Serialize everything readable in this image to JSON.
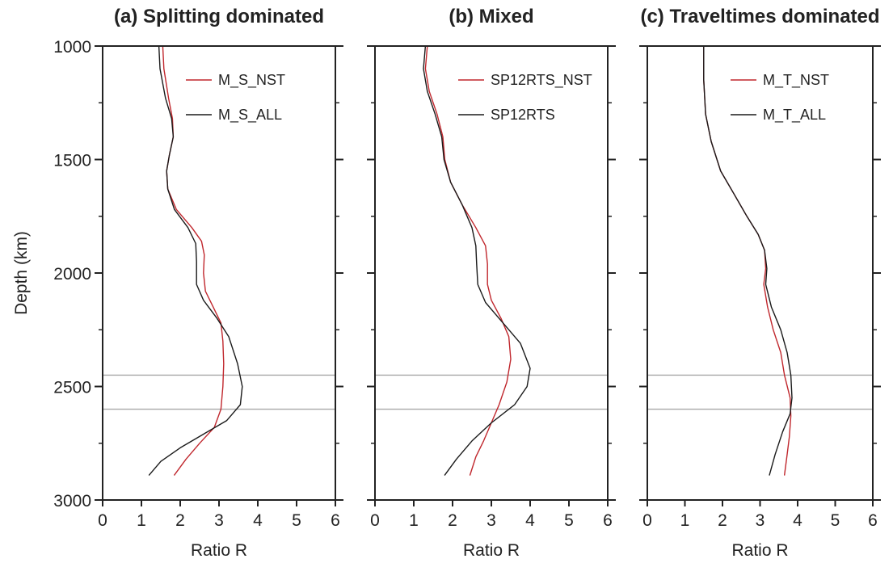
{
  "chart_data": [
    {
      "type": "line",
      "title": "(a) Splitting dominated",
      "xlabel": "Ratio R",
      "ylabel": "Depth (km)",
      "xlim": [
        0,
        6
      ],
      "ylim": [
        3000,
        1000
      ],
      "xticks": [
        0,
        1,
        2,
        3,
        4,
        5,
        6
      ],
      "yticks": [
        1000,
        1500,
        2000,
        2500,
        3000
      ],
      "y_minor": [
        1250,
        1750,
        2250,
        2750
      ],
      "ref_lines": [
        2450,
        2600
      ],
      "legend": "top-right",
      "series": [
        {
          "name": "M_S_NST",
          "color": "#c0272d",
          "points": [
            [
              1.55,
              1000
            ],
            [
              1.58,
              1100
            ],
            [
              1.7,
              1230
            ],
            [
              1.8,
              1320
            ],
            [
              1.82,
              1400
            ],
            [
              1.72,
              1480
            ],
            [
              1.65,
              1550
            ],
            [
              1.68,
              1630
            ],
            [
              1.9,
              1720
            ],
            [
              2.3,
              1800
            ],
            [
              2.55,
              1860
            ],
            [
              2.62,
              1920
            ],
            [
              2.6,
              2000
            ],
            [
              2.65,
              2080
            ],
            [
              2.85,
              2150
            ],
            [
              3.05,
              2220
            ],
            [
              3.1,
              2300
            ],
            [
              3.12,
              2400
            ],
            [
              3.1,
              2500
            ],
            [
              3.05,
              2600
            ],
            [
              2.88,
              2680
            ],
            [
              2.5,
              2750
            ],
            [
              2.15,
              2820
            ],
            [
              1.85,
              2890
            ]
          ]
        },
        {
          "name": "M_S_ALL",
          "color": "#1a1a1a",
          "points": [
            [
              1.45,
              1000
            ],
            [
              1.48,
              1100
            ],
            [
              1.62,
              1230
            ],
            [
              1.78,
              1320
            ],
            [
              1.82,
              1400
            ],
            [
              1.72,
              1480
            ],
            [
              1.65,
              1550
            ],
            [
              1.68,
              1630
            ],
            [
              1.85,
              1720
            ],
            [
              2.2,
              1800
            ],
            [
              2.4,
              1870
            ],
            [
              2.42,
              1950
            ],
            [
              2.42,
              2050
            ],
            [
              2.6,
              2120
            ],
            [
              2.95,
              2200
            ],
            [
              3.25,
              2280
            ],
            [
              3.48,
              2400
            ],
            [
              3.6,
              2500
            ],
            [
              3.55,
              2580
            ],
            [
              3.2,
              2650
            ],
            [
              2.6,
              2710
            ],
            [
              2.0,
              2770
            ],
            [
              1.5,
              2830
            ],
            [
              1.2,
              2890
            ]
          ]
        }
      ]
    },
    {
      "type": "line",
      "title": "(b) Mixed",
      "xlabel": "Ratio R",
      "ylabel": "",
      "xlim": [
        0,
        6
      ],
      "ylim": [
        3000,
        1000
      ],
      "xticks": [
        0,
        1,
        2,
        3,
        4,
        5,
        6
      ],
      "yticks": [
        1000,
        1500,
        2000,
        2500,
        3000
      ],
      "y_minor": [
        1250,
        1750,
        2250,
        2750
      ],
      "ref_lines": [
        2450,
        2600
      ],
      "legend": "top-right",
      "series": [
        {
          "name": "SP12RTS_NST",
          "color": "#c0272d",
          "points": [
            [
              1.35,
              1000
            ],
            [
              1.3,
              1100
            ],
            [
              1.4,
              1200
            ],
            [
              1.6,
              1300
            ],
            [
              1.75,
              1400
            ],
            [
              1.8,
              1500
            ],
            [
              1.95,
              1600
            ],
            [
              2.25,
              1700
            ],
            [
              2.6,
              1800
            ],
            [
              2.85,
              1880
            ],
            [
              2.9,
              1960
            ],
            [
              2.9,
              2050
            ],
            [
              3.0,
              2120
            ],
            [
              3.25,
              2200
            ],
            [
              3.45,
              2280
            ],
            [
              3.5,
              2380
            ],
            [
              3.4,
              2480
            ],
            [
              3.2,
              2580
            ],
            [
              3.0,
              2660
            ],
            [
              2.8,
              2740
            ],
            [
              2.6,
              2810
            ],
            [
              2.45,
              2890
            ]
          ]
        },
        {
          "name": "SP12RTS",
          "color": "#1a1a1a",
          "points": [
            [
              1.3,
              1000
            ],
            [
              1.25,
              1100
            ],
            [
              1.35,
              1200
            ],
            [
              1.55,
              1300
            ],
            [
              1.72,
              1400
            ],
            [
              1.78,
              1500
            ],
            [
              1.95,
              1600
            ],
            [
              2.25,
              1700
            ],
            [
              2.5,
              1800
            ],
            [
              2.6,
              1880
            ],
            [
              2.62,
              1960
            ],
            [
              2.65,
              2050
            ],
            [
              2.85,
              2130
            ],
            [
              3.3,
              2220
            ],
            [
              3.75,
              2310
            ],
            [
              4.0,
              2420
            ],
            [
              3.92,
              2500
            ],
            [
              3.6,
              2580
            ],
            [
              3.0,
              2660
            ],
            [
              2.5,
              2740
            ],
            [
              2.1,
              2820
            ],
            [
              1.8,
              2890
            ]
          ]
        }
      ]
    },
    {
      "type": "line",
      "title": "(c) Traveltimes dominated",
      "xlabel": "Ratio R",
      "ylabel": "",
      "xlim": [
        0,
        6
      ],
      "ylim": [
        3000,
        1000
      ],
      "xticks": [
        0,
        1,
        2,
        3,
        4,
        5,
        6
      ],
      "yticks": [
        1000,
        1500,
        2000,
        2500,
        3000
      ],
      "y_minor": [
        1250,
        1750,
        2250,
        2750
      ],
      "ref_lines": [
        2450,
        2600
      ],
      "legend": "top-right",
      "series": [
        {
          "name": "M_T_NST",
          "color": "#c0272d",
          "points": [
            [
              1.5,
              1000
            ],
            [
              1.5,
              1150
            ],
            [
              1.55,
              1300
            ],
            [
              1.7,
              1420
            ],
            [
              1.95,
              1550
            ],
            [
              2.3,
              1650
            ],
            [
              2.65,
              1750
            ],
            [
              2.95,
              1830
            ],
            [
              3.12,
              1900
            ],
            [
              3.15,
              1980
            ],
            [
              3.1,
              2050
            ],
            [
              3.2,
              2150
            ],
            [
              3.35,
              2250
            ],
            [
              3.55,
              2350
            ],
            [
              3.65,
              2450
            ],
            [
              3.8,
              2550
            ],
            [
              3.82,
              2630
            ],
            [
              3.78,
              2720
            ],
            [
              3.72,
              2800
            ],
            [
              3.65,
              2890
            ]
          ]
        },
        {
          "name": "M_T_ALL",
          "color": "#1a1a1a",
          "points": [
            [
              1.5,
              1000
            ],
            [
              1.5,
              1150
            ],
            [
              1.55,
              1300
            ],
            [
              1.7,
              1420
            ],
            [
              1.95,
              1550
            ],
            [
              2.3,
              1650
            ],
            [
              2.65,
              1750
            ],
            [
              2.95,
              1830
            ],
            [
              3.12,
              1900
            ],
            [
              3.18,
              1980
            ],
            [
              3.15,
              2050
            ],
            [
              3.3,
              2150
            ],
            [
              3.55,
              2250
            ],
            [
              3.72,
              2350
            ],
            [
              3.82,
              2450
            ],
            [
              3.85,
              2550
            ],
            [
              3.8,
              2620
            ],
            [
              3.6,
              2700
            ],
            [
              3.4,
              2800
            ],
            [
              3.25,
              2890
            ]
          ]
        }
      ]
    }
  ]
}
